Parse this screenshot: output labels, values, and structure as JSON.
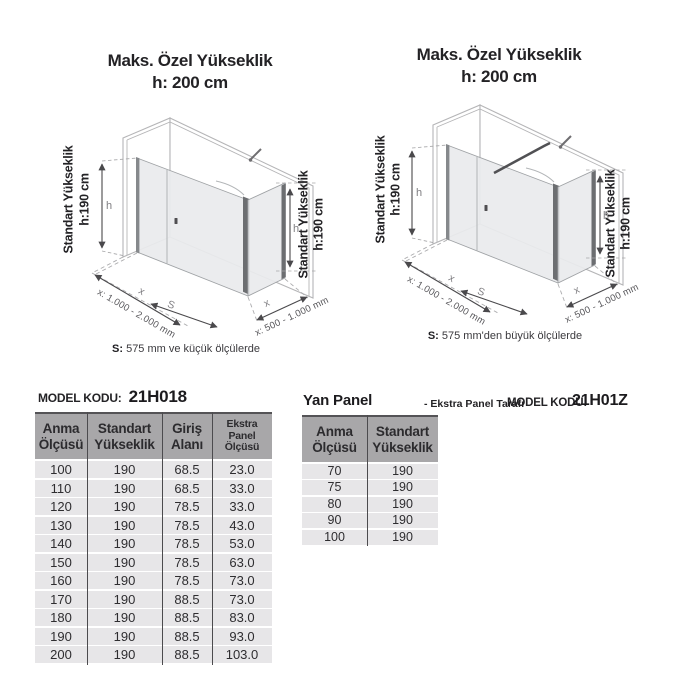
{
  "colors": {
    "table_header_bg": "#a8a7a9",
    "table_row_bg": "#e7e6e8",
    "glass": "#e9ebed",
    "dimension_lines": "#4a494c"
  },
  "diagrams": {
    "left": {
      "title_line1": "Maks. Özel Yükseklik",
      "title_line2": "h: 200 cm",
      "standard_height_label": "Standart Yükseklik",
      "standard_height_value": "h:190 cm",
      "h_symbol": "h",
      "x_symbol": "x",
      "s_symbol": "S",
      "front_width_range": "x: 1.000 - 2.000 mm",
      "side_width_range": "x: 500 - 1.000 mm",
      "caption_bold": "S:",
      "caption_rest": " 575 mm ve küçük ölçülerde"
    },
    "right": {
      "title_line1": "Maks. Özel Yükseklik",
      "title_line2": "h: 200 cm",
      "standard_height_label": "Standart Yükseklik",
      "standard_height_value": "h:190 cm",
      "h_symbol": "h",
      "x_symbol": "x",
      "s_symbol": "S",
      "front_width_range": "x: 1.000 - 2.000 mm",
      "side_width_range": "x: 500 - 1.000 mm",
      "caption_bold": "S:",
      "caption_rest": " 575 mm'den büyük ölçülerde"
    }
  },
  "main_table": {
    "model_label": "MODEL KODU:",
    "model_code": "21H018",
    "headers": [
      {
        "line1": "Anma",
        "line2": "Ölçüsü"
      },
      {
        "line1": "Standart",
        "line2": "Yükseklik"
      },
      {
        "line1": "Giriş",
        "line2": "Alanı"
      },
      {
        "line1": "Ekstra",
        "line2": "Panel Ölçüsü"
      }
    ],
    "rows": [
      [
        "100",
        "190",
        "68.5",
        "23.0"
      ],
      [
        "110",
        "190",
        "68.5",
        "33.0"
      ],
      [
        "120",
        "190",
        "78.5",
        "33.0"
      ],
      [
        "130",
        "190",
        "78.5",
        "43.0"
      ],
      [
        "140",
        "190",
        "78.5",
        "53.0"
      ],
      [
        "150",
        "190",
        "78.5",
        "63.0"
      ],
      [
        "160",
        "190",
        "78.5",
        "73.0"
      ],
      [
        "170",
        "190",
        "88.5",
        "73.0"
      ],
      [
        "180",
        "190",
        "88.5",
        "83.0"
      ],
      [
        "190",
        "190",
        "88.5",
        "93.0"
      ],
      [
        "200",
        "190",
        "88.5",
        "103.0"
      ]
    ]
  },
  "side_table": {
    "title": "Yan Panel",
    "note": "- Ekstra Panel Tarafı",
    "model_label": "MODEL KODU:",
    "model_code": "21H01Z",
    "headers": [
      {
        "line1": "Anma",
        "line2": "Ölçüsü"
      },
      {
        "line1": "Standart",
        "line2": "Yükseklik"
      }
    ],
    "rows": [
      [
        "70",
        "190"
      ],
      [
        "75",
        "190"
      ],
      [
        "80",
        "190"
      ],
      [
        "90",
        "190"
      ],
      [
        "100",
        "190"
      ]
    ]
  }
}
